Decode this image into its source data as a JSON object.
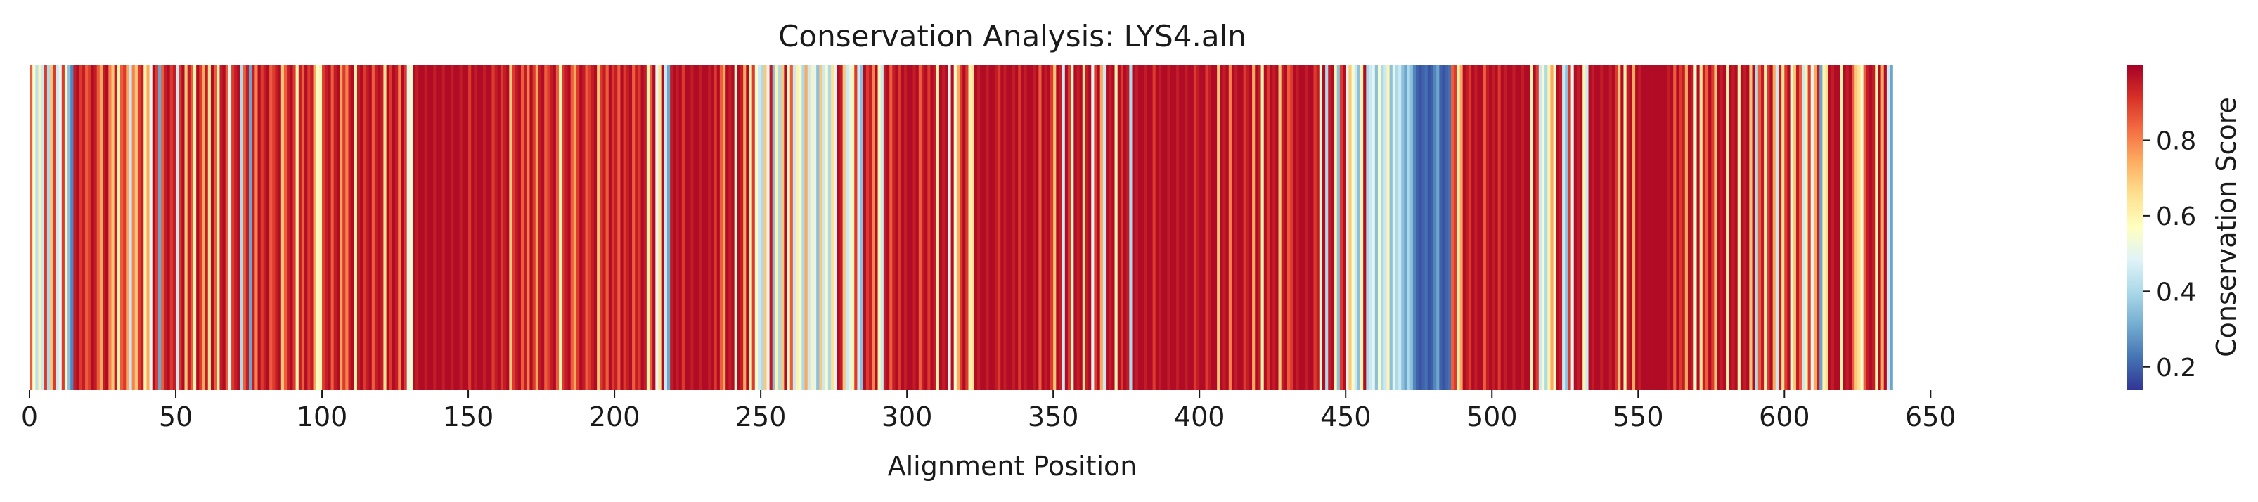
{
  "chart_data": {
    "type": "heatmap",
    "title": "Conservation Analysis: LYS4.aln",
    "xlabel": "Alignment Position",
    "ylabel": "",
    "xlim": [
      0,
      673
    ],
    "x_ticks": [
      0,
      50,
      100,
      150,
      200,
      250,
      300,
      350,
      400,
      450,
      500,
      550,
      600,
      650
    ],
    "x_tick_labels": [
      "0",
      "50",
      "100",
      "150",
      "200",
      "250",
      "300",
      "350",
      "400",
      "450",
      "500",
      "550",
      "600",
      "650"
    ],
    "colorbar": {
      "label": "Conservation Score",
      "range": [
        0.14,
        1.0
      ],
      "ticks": [
        0.2,
        0.4,
        0.6,
        0.8
      ],
      "tick_labels": [
        "0.2",
        "0.4",
        "0.6",
        "0.8"
      ],
      "colormap": "RdYlBu_r",
      "colors": [
        "#313695",
        "#4575b4",
        "#74add1",
        "#abd9e9",
        "#e0f3f8",
        "#ffffbf",
        "#fee090",
        "#fdae61",
        "#f46d43",
        "#d73027",
        "#a50026"
      ]
    },
    "scores": [
      0.85,
      0.55,
      0.42,
      0.6,
      0.45,
      0.9,
      0.4,
      0.7,
      0.9,
      0.45,
      0.5,
      0.9,
      0.55,
      0.35,
      0.25,
      0.95,
      0.98,
      0.9,
      0.95,
      0.85,
      0.9,
      0.98,
      0.95,
      0.85,
      0.75,
      0.95,
      0.98,
      0.8,
      0.7,
      0.95,
      0.6,
      0.85,
      0.9,
      0.75,
      0.45,
      0.8,
      0.7,
      0.9,
      0.95,
      0.6,
      0.75,
      0.5,
      0.98,
      0.9,
      0.3,
      0.85,
      0.95,
      0.98,
      0.9,
      0.95,
      0.45,
      0.9,
      0.98,
      0.7,
      0.95,
      0.85,
      0.6,
      0.98,
      0.9,
      0.75,
      0.95,
      0.65,
      0.98,
      0.85,
      0.6,
      0.95,
      0.98,
      0.85,
      0.5,
      0.9,
      0.95,
      0.98,
      0.4,
      0.85,
      0.95,
      0.3,
      0.95,
      0.8,
      0.98,
      0.9,
      0.95,
      0.98,
      0.85,
      0.9,
      0.95,
      0.98,
      0.7,
      0.85,
      0.95,
      0.98,
      0.9,
      0.6,
      0.95,
      0.85,
      0.98,
      0.9,
      0.95,
      0.75,
      0.55,
      0.6,
      0.9,
      0.95,
      0.98,
      0.85,
      0.95,
      0.98,
      0.75,
      0.9,
      0.8,
      0.95,
      0.98,
      0.6,
      0.95,
      0.98,
      0.9,
      0.95,
      0.98,
      0.85,
      0.95,
      0.98,
      0.95,
      0.65,
      0.98,
      0.9,
      0.98,
      0.95,
      0.8,
      0.98,
      0.9,
      0.5,
      0.55,
      0.98,
      0.95,
      0.98,
      0.98,
      0.95,
      0.98,
      0.98,
      0.95,
      0.98,
      0.98,
      0.95,
      0.98,
      0.98,
      0.95,
      0.98,
      0.98,
      0.95,
      0.98,
      0.98,
      0.9,
      0.98,
      0.95,
      0.98,
      0.98,
      0.95,
      0.98,
      0.98,
      0.9,
      0.95,
      0.98,
      0.9,
      0.95,
      0.98,
      0.7,
      0.9,
      0.95,
      0.98,
      0.85,
      0.95,
      0.8,
      0.98,
      0.9,
      0.75,
      0.95,
      0.98,
      0.85,
      0.9,
      0.95,
      0.98,
      0.85,
      0.6,
      0.9,
      0.95,
      0.98,
      0.85,
      0.75,
      0.9,
      0.98,
      0.95,
      0.85,
      0.9,
      0.95,
      0.98,
      0.7,
      0.9,
      0.95,
      0.85,
      0.98,
      0.9,
      0.95,
      0.85,
      0.98,
      0.9,
      0.95,
      0.98,
      0.85,
      0.95,
      0.9,
      0.98,
      0.95,
      0.6,
      0.85,
      0.98,
      0.5,
      0.65,
      0.98,
      0.45,
      0.3,
      0.95,
      0.98,
      0.95,
      0.98,
      0.9,
      0.98,
      0.98,
      0.95,
      0.98,
      0.98,
      0.95,
      0.98,
      0.98,
      0.95,
      0.98,
      0.9,
      0.98,
      0.85,
      0.75,
      0.98,
      0.95,
      0.98,
      0.55,
      0.98,
      0.95,
      0.75,
      0.98,
      0.6,
      0.9,
      0.55,
      0.45,
      0.4,
      0.7,
      0.5,
      0.95,
      0.35,
      0.6,
      0.4,
      0.7,
      0.98,
      0.55,
      0.85,
      0.45,
      0.6,
      0.55,
      0.4,
      0.75,
      0.45,
      0.6,
      0.5,
      0.35,
      0.7,
      0.45,
      0.55,
      0.4,
      0.65,
      0.5,
      0.98,
      0.95,
      0.7,
      0.45,
      0.5,
      0.6,
      0.9,
      0.45,
      0.35,
      0.98,
      0.9,
      0.95,
      0.8,
      0.98,
      0.6,
      0.45,
      0.95,
      0.98,
      0.85,
      0.95,
      0.98,
      0.9,
      0.98,
      0.95,
      0.98,
      0.98,
      0.95,
      0.98,
      0.85,
      0.95,
      0.98,
      0.9,
      0.98,
      0.95,
      0.6,
      0.98,
      0.95,
      0.98,
      0.5,
      0.98,
      0.55,
      0.75,
      0.9,
      0.98,
      0.9,
      0.6,
      0.65,
      0.98,
      0.95,
      0.98,
      0.98,
      0.95,
      0.98,
      0.98,
      0.95,
      0.9,
      0.98,
      0.95,
      0.98,
      0.98,
      0.95,
      0.98,
      0.9,
      0.98,
      0.95,
      0.98,
      0.98,
      0.95,
      0.98,
      0.85,
      0.98,
      0.95,
      0.98,
      0.9,
      0.7,
      0.98,
      0.95,
      0.45,
      0.98,
      0.9,
      0.55,
      0.98,
      0.95,
      0.98,
      0.65,
      0.95,
      0.98,
      0.5,
      0.9,
      0.98,
      0.75,
      0.45,
      0.98,
      0.95,
      0.98,
      0.6,
      0.98,
      0.9,
      0.98,
      0.95,
      0.4,
      0.98,
      0.95,
      0.98,
      0.98,
      0.95,
      0.98,
      0.98,
      0.9,
      0.98,
      0.95,
      0.98,
      0.98,
      0.95,
      0.98,
      0.98,
      0.95,
      0.98,
      0.98,
      0.95,
      0.98,
      0.98,
      0.9,
      0.95,
      0.98,
      0.98,
      0.9,
      0.95,
      0.98,
      0.98,
      0.7,
      0.98,
      0.95,
      0.98,
      0.8,
      0.98,
      0.95,
      0.98,
      0.98,
      0.9,
      0.95,
      0.98,
      0.75,
      0.98,
      0.95,
      0.6,
      0.98,
      0.9,
      0.98,
      0.95,
      0.98,
      0.7,
      0.95,
      0.98,
      0.85,
      0.9,
      0.98,
      0.95,
      0.98,
      0.98,
      0.95,
      0.98,
      0.98,
      0.9,
      0.95,
      0.55,
      0.98,
      0.4,
      0.95,
      0.98,
      0.6,
      0.35,
      0.9,
      0.98,
      0.5,
      0.7,
      0.55,
      0.45,
      0.35,
      0.6,
      0.98,
      0.4,
      0.45,
      0.5,
      0.35,
      0.55,
      0.4,
      0.45,
      0.6,
      0.35,
      0.5,
      0.4,
      0.45,
      0.35,
      0.3,
      0.4,
      0.35,
      0.25,
      0.2,
      0.18,
      0.2,
      0.22,
      0.18,
      0.2,
      0.25,
      0.3,
      0.2,
      0.18,
      0.2,
      0.22,
      0.85,
      0.9,
      0.6,
      0.75,
      0.98,
      0.95,
      0.9,
      0.98,
      0.95,
      0.98,
      0.98,
      0.85,
      0.95,
      0.98,
      0.95,
      0.98,
      0.9,
      0.98,
      0.95,
      0.98,
      0.98,
      0.95,
      0.98,
      0.98,
      0.95,
      0.98,
      0.98,
      0.6,
      0.98,
      0.9,
      0.45,
      0.55,
      0.4,
      0.6,
      0.75,
      0.55,
      0.98,
      0.95,
      0.45,
      0.35,
      0.9,
      0.5,
      0.98,
      0.95,
      0.98,
      0.6,
      0.45,
      0.98,
      0.95,
      0.98,
      0.98,
      0.95,
      0.98,
      0.98,
      0.95,
      0.98,
      0.9,
      0.7,
      0.98,
      0.6,
      0.95,
      0.98,
      0.75,
      0.98,
      0.95,
      0.98,
      0.98,
      0.98,
      0.98,
      0.98,
      0.98,
      0.98,
      0.98,
      0.98,
      0.95,
      0.98,
      0.85,
      0.98,
      0.9,
      0.95,
      0.75,
      0.98,
      0.95,
      0.55,
      0.98,
      0.65,
      0.95,
      0.85,
      0.98,
      0.9,
      0.7,
      0.98,
      0.95,
      0.98,
      0.6,
      0.98,
      0.95,
      0.98,
      0.6,
      0.98,
      0.95,
      0.98,
      0.7,
      0.98,
      0.4,
      0.85,
      0.95,
      0.6,
      0.9,
      0.98,
      0.75,
      0.45,
      0.95,
      0.65,
      0.9,
      0.98,
      0.55,
      0.7,
      0.95,
      0.85,
      0.45,
      0.6,
      0.9,
      0.5,
      0.75,
      0.95,
      0.3,
      0.6,
      0.65,
      0.98,
      0.95,
      0.98,
      0.98,
      0.6,
      0.98,
      0.95,
      0.98,
      0.85,
      0.7,
      0.65,
      0.55,
      0.85,
      0.95,
      0.98,
      0.95,
      0.6,
      0.98,
      0.75,
      0.98,
      0.45,
      0.3
    ]
  }
}
